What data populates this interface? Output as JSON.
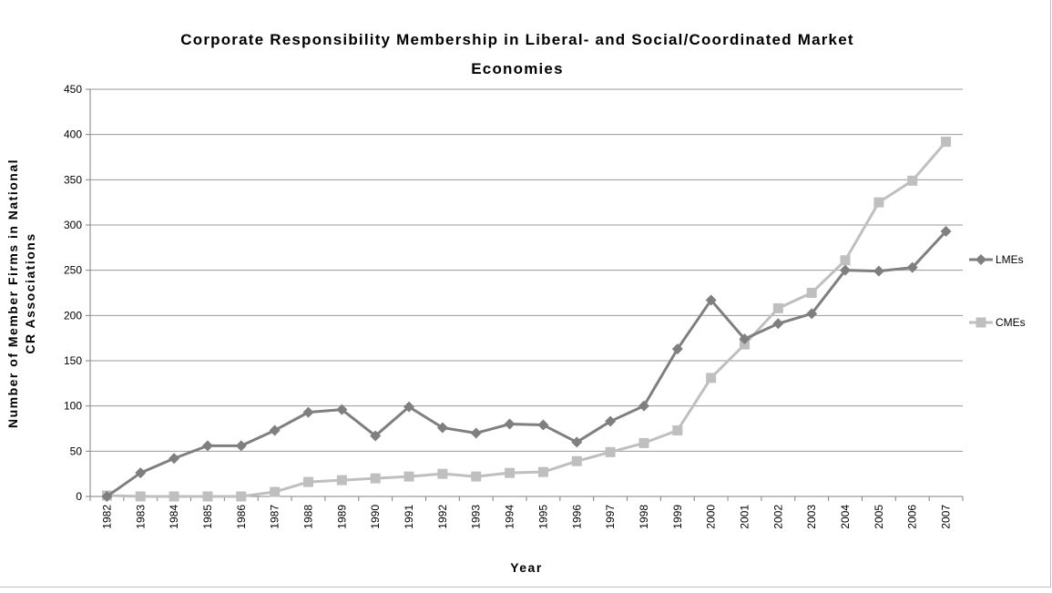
{
  "chart_data": {
    "type": "line",
    "title": "Corporate Responsibility Membership in Liberal- and Social/Coordinated Market Economies",
    "title_lines": [
      "Corporate Responsibility Membership in Liberal- and Social/Coordinated Market",
      "Economies"
    ],
    "xlabel": "Year",
    "ylabel": "Number of Member Firms in National CR Associations",
    "ylabel_lines": [
      "Number of Member Firms in National",
      "CR Associations"
    ],
    "ylim": [
      0,
      450
    ],
    "yticks": [
      0,
      50,
      100,
      150,
      200,
      250,
      300,
      350,
      400,
      450
    ],
    "grid": true,
    "legend_position": "right",
    "categories": [
      "1982",
      "1983",
      "1984",
      "1985",
      "1986",
      "1987",
      "1988",
      "1989",
      "1990",
      "1991",
      "1992",
      "1993",
      "1994",
      "1995",
      "1996",
      "1997",
      "1998",
      "1999",
      "2000",
      "2001",
      "2002",
      "2003",
      "2004",
      "2005",
      "2006",
      "2007"
    ],
    "series": [
      {
        "name": "LMEs",
        "color": "#7f7f7f",
        "marker": "diamond",
        "values": [
          0,
          26,
          42,
          56,
          56,
          73,
          93,
          96,
          67,
          99,
          76,
          70,
          80,
          79,
          60,
          83,
          100,
          163,
          217,
          174,
          191,
          202,
          250,
          249,
          253,
          293
        ]
      },
      {
        "name": "CMEs",
        "color": "#bfbfbf",
        "marker": "square",
        "values": [
          1,
          0,
          0,
          0,
          0,
          5,
          16,
          18,
          20,
          22,
          25,
          22,
          26,
          27,
          39,
          49,
          59,
          73,
          131,
          168,
          208,
          225,
          261,
          325,
          349,
          392
        ]
      }
    ]
  }
}
